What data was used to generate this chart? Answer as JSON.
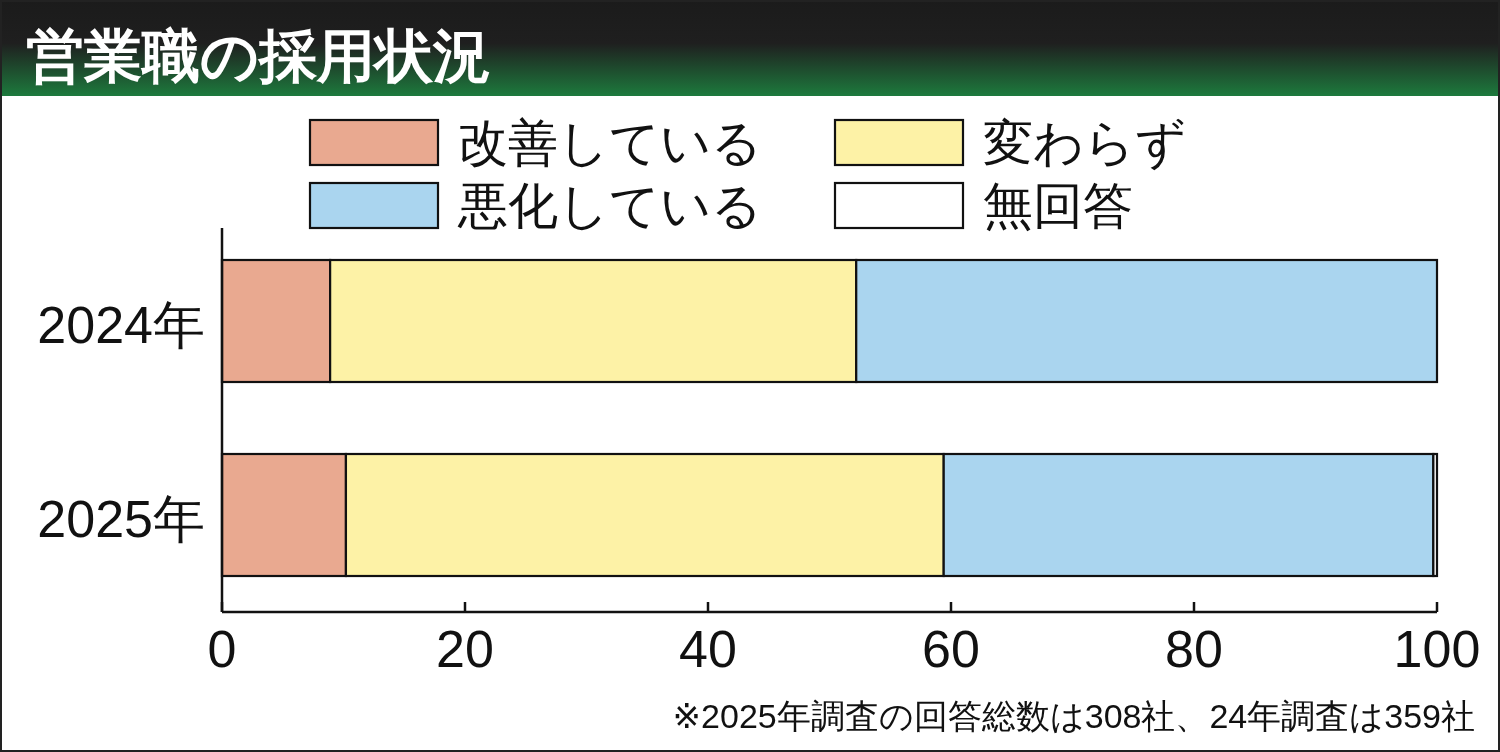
{
  "chart_data": {
    "type": "bar",
    "orientation": "horizontal",
    "stacked": true,
    "title": "営業職の採用状況",
    "categories": [
      "2024年",
      "2025年"
    ],
    "series": [
      {
        "name": "改善している",
        "color": "#e9a990",
        "values": [
          8.9,
          10.2
        ]
      },
      {
        "name": "変わらず",
        "color": "#fdf2a6",
        "values": [
          43.3,
          49.2
        ]
      },
      {
        "name": "悪化している",
        "color": "#aad5ef",
        "values": [
          47.8,
          40.3
        ]
      },
      {
        "name": "無回答",
        "color": "#ffffff",
        "values": [
          0,
          0.3
        ]
      }
    ],
    "xlim": [
      0,
      100
    ],
    "xticks": [
      0,
      20,
      40,
      60,
      80,
      100
    ],
    "grid": false,
    "legend": "top",
    "annotations": [
      "※2025年調査の回答総数は308社、24年調査は359社"
    ]
  }
}
